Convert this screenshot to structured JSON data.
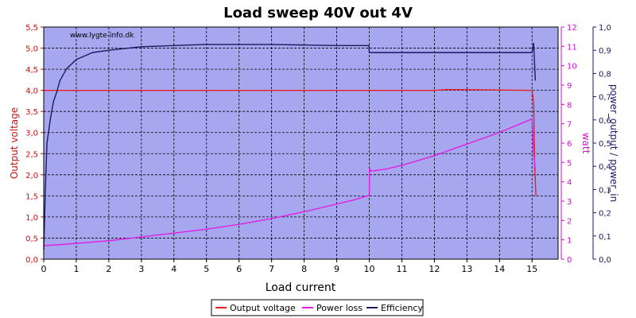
{
  "chart_data": {
    "type": "line",
    "title": "Load sweep 40V out 4V",
    "watermark": "www.lygte-info.dk",
    "xlabel": "Load current",
    "ylabel_left": "Output voltage",
    "ylabel_right1": "watt",
    "ylabel_right2": "power_output / power_in",
    "xlim": [
      0,
      15.8
    ],
    "ylim_left": [
      0,
      5.5
    ],
    "ylim_right1": [
      0,
      12
    ],
    "ylim_right2": [
      0,
      1.0
    ],
    "x_ticks": [
      "0",
      "1",
      "2",
      "3",
      "4",
      "5",
      "6",
      "7",
      "8",
      "9",
      "10",
      "11",
      "12",
      "13",
      "14",
      "15"
    ],
    "y_left_ticks": [
      "0,0",
      "0,5",
      "1,0",
      "1,5",
      "2,0",
      "2,5",
      "3,0",
      "3,5",
      "4,0",
      "4,5",
      "5,0",
      "5,5"
    ],
    "y_right1_ticks": [
      "0",
      "1",
      "2",
      "3",
      "4",
      "5",
      "6",
      "7",
      "8",
      "9",
      "10",
      "11",
      "12"
    ],
    "y_right2_ticks": [
      "0,0",
      "0,1",
      "0,2",
      "0,3",
      "0,4",
      "0,5",
      "0,6",
      "0,7",
      "0,8",
      "0,9",
      "1,0"
    ],
    "grid": true,
    "legend_position": "bottom",
    "colors": {
      "plot_bg": "#a7a7ef",
      "grid": "#000000",
      "voltage": "#ee1c25",
      "power_loss": "#e020e0",
      "efficiency": "#1a1a60",
      "left_axis": "#d01010",
      "right1_axis": "#cc11cc",
      "right2_axis": "#1a1a60"
    },
    "series": [
      {
        "name": "Output voltage",
        "axis": "left",
        "x": [
          0,
          2.95,
          3.0,
          3.05,
          12.0,
          12.4,
          15.0,
          15.05,
          15.08,
          15.12
        ],
        "values": [
          4.0,
          4.0,
          3.98,
          4.0,
          4.0,
          4.02,
          4.0,
          3.7,
          2.2,
          1.5
        ]
      },
      {
        "name": "Power loss",
        "axis": "right1",
        "x": [
          0,
          0.5,
          1,
          2,
          3,
          4,
          5,
          6,
          7,
          8,
          9,
          9.5,
          10.0,
          10.01,
          10.05,
          10.5,
          11,
          12,
          13,
          14,
          15.0,
          15.05,
          15.1
        ],
        "values": [
          0.7,
          0.75,
          0.82,
          0.95,
          1.15,
          1.35,
          1.55,
          1.8,
          2.1,
          2.45,
          2.85,
          3.05,
          3.3,
          4.7,
          4.55,
          4.65,
          4.85,
          5.35,
          5.95,
          6.55,
          7.25,
          5.5,
          4.6
        ]
      },
      {
        "name": "Efficiency",
        "axis": "right2",
        "x": [
          0,
          0.05,
          0.1,
          0.2,
          0.3,
          0.4,
          0.5,
          0.7,
          1.0,
          1.5,
          2.0,
          3.0,
          4.0,
          5.0,
          7.0,
          9.0,
          9.99,
          10.0,
          11.0,
          13.0,
          14.5,
          15.0,
          15.05,
          15.1
        ],
        "values": [
          0.04,
          0.3,
          0.5,
          0.6,
          0.68,
          0.72,
          0.77,
          0.82,
          0.86,
          0.89,
          0.9,
          0.915,
          0.92,
          0.925,
          0.925,
          0.92,
          0.92,
          0.89,
          0.89,
          0.89,
          0.89,
          0.89,
          0.93,
          0.77
        ]
      }
    ]
  }
}
